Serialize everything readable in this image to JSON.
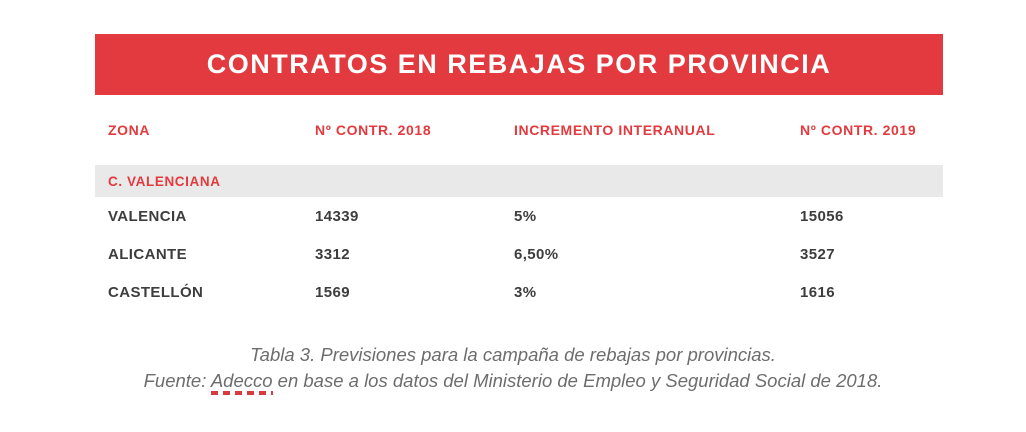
{
  "title": "CONTRATOS EN REBAJAS POR PROVINCIA",
  "table": {
    "columns": [
      "ZONA",
      "Nº CONTR. 2018",
      "INCREMENTO INTERANUAL",
      "Nº CONTR. 2019"
    ],
    "section": "C. VALENCIANA",
    "rows": [
      {
        "zona": "VALENCIA",
        "contr2018": "14339",
        "incremento": "5%",
        "contr2019": "15056"
      },
      {
        "zona": "ALICANTE",
        "contr2018": "3312",
        "incremento": "6,50%",
        "contr2019": "3527"
      },
      {
        "zona": "CASTELLÓN",
        "contr2018": "1569",
        "incremento": "3%",
        "contr2019": "1616"
      }
    ]
  },
  "chart_data": {
    "type": "table",
    "title": "CONTRATOS EN REBAJAS POR PROVINCIA",
    "columns": [
      "ZONA",
      "Nº CONTR. 2018",
      "INCREMENTO INTERANUAL",
      "Nº CONTR. 2019"
    ],
    "section": "C. VALENCIANA",
    "rows": [
      [
        "VALENCIA",
        14339,
        "5%",
        15056
      ],
      [
        "ALICANTE",
        3312,
        "6,50%",
        3527
      ],
      [
        "CASTELLÓN",
        1569,
        "3%",
        1616
      ]
    ]
  },
  "caption": {
    "line1": "Tabla 3. Previsiones para la campaña de rebajas por provincias.",
    "line2_prefix": "Fuente: ",
    "line2_underlined": "Adecco",
    "line2_suffix": " en base a los datos del Ministerio de Empleo y Seguridad Social de 2018."
  },
  "colors": {
    "accent_red": "#e23a3e",
    "band_gray": "#e9e9e9",
    "body_text": "#3d3d3d",
    "caption_gray": "#6d6d6d",
    "underline_red": "#d93a3d"
  }
}
